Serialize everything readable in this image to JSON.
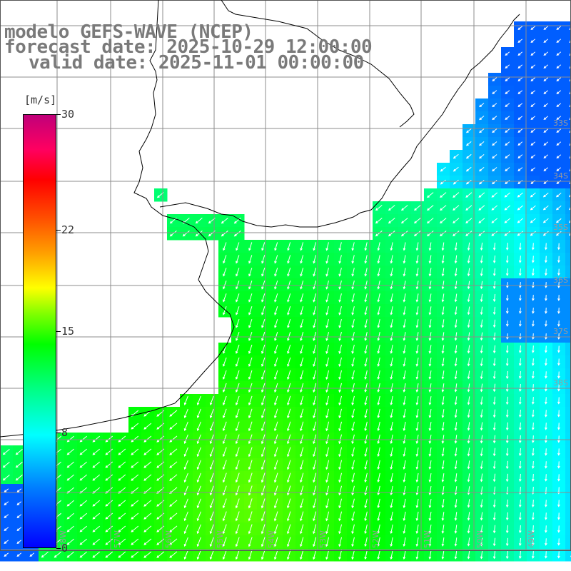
{
  "title": {
    "line1": "modelo GEFS-WAVE (NCEP)",
    "line2": "forecast date: 2025-10-29 12:00:00",
    "line3": "valid date: 2025-11-01 00:00:00"
  },
  "colorbar": {
    "unit": "[m/s]",
    "ticks": [
      "30",
      "22",
      "15",
      "8",
      "0"
    ],
    "tick_values": [
      30,
      22,
      15,
      8,
      0
    ],
    "range": [
      0,
      30
    ],
    "colors": [
      "#0000ff",
      "#0080ff",
      "#00ffff",
      "#00ff80",
      "#00ff00",
      "#80ff00",
      "#ffff00",
      "#ffa000",
      "#ff5000",
      "#ff0000",
      "#ff0060",
      "#c0007a"
    ]
  },
  "map": {
    "lat_labels": [
      "33S",
      "34S",
      "35S",
      "36S",
      "37S",
      "38S"
    ],
    "lon_labels": [
      "58W",
      "57W",
      "56W",
      "55W",
      "54W",
      "53W",
      "52W",
      "51W",
      "50W",
      "49W",
      "48W"
    ],
    "colors": {
      "land": "#ffffff",
      "grid": "#8c8c8c",
      "coast": "#000000",
      "arrow": "#ffffff"
    }
  }
}
